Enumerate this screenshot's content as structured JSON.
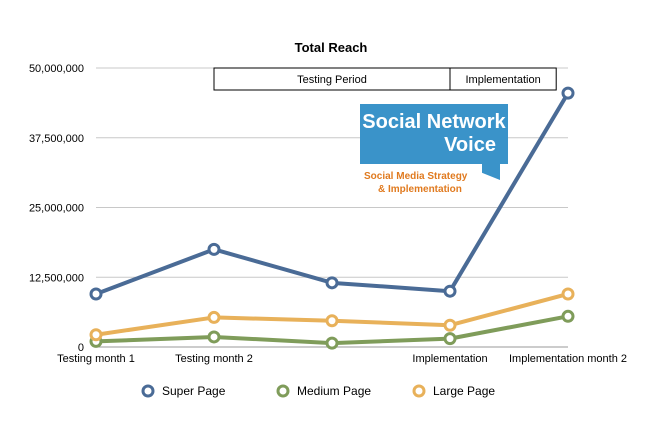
{
  "chart_data": {
    "type": "line",
    "title": "Total Reach",
    "categories": [
      "Testing month 1",
      "Testing month 2",
      "",
      "Implementation",
      "Implementation month 2"
    ],
    "ylim": [
      0,
      50000000
    ],
    "yticks": [
      0,
      12500000,
      25000000,
      37500000,
      50000000
    ],
    "ytick_labels": [
      "0",
      "12,500,000",
      "25,000,000",
      "37,500,000",
      "50,000,000"
    ],
    "grid": true,
    "legend_position": "bottom",
    "series": [
      {
        "name": "Super Page",
        "color": "#4a6b96",
        "values": [
          9500000,
          17500000,
          11500000,
          10000000,
          45500000
        ]
      },
      {
        "name": "Medium Page",
        "color": "#7f9c5a",
        "values": [
          1000000,
          1800000,
          700000,
          1500000,
          5500000
        ]
      },
      {
        "name": "Large Page",
        "color": "#e8b15a",
        "values": [
          2200000,
          5300000,
          4700000,
          3900000,
          9500000
        ]
      }
    ],
    "periods": [
      {
        "label": "Testing Period",
        "from": 1.0,
        "to": 3.0
      },
      {
        "label": "Implementation",
        "from": 3.0,
        "to": 3.9
      }
    ]
  },
  "logo": {
    "title_line1": "Social Network",
    "title_line2": "Voice",
    "subtitle_line1": "Social Media Strategy",
    "subtitle_line2": "& Implementation",
    "bg_color": "#3a93c9"
  }
}
